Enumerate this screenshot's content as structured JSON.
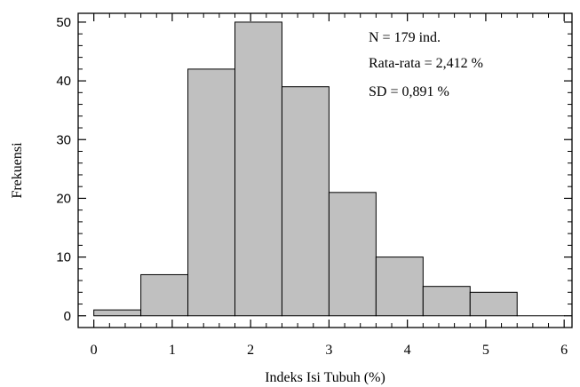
{
  "chart_data": {
    "type": "bar",
    "title": "",
    "xlabel": "Indeks Isi Tubuh (%)",
    "ylabel": "Frekuensi",
    "xlim": [
      -0.2,
      6.1
    ],
    "ylim": [
      -2,
      51.5
    ],
    "x_ticks": [
      "0",
      "1",
      "2",
      "3",
      "4",
      "5",
      "6"
    ],
    "y_ticks": [
      "0",
      "10",
      "20",
      "30",
      "40",
      "50"
    ],
    "bin_width": 0.6,
    "bins": [
      {
        "start": 0.0,
        "end": 0.6,
        "value": 1
      },
      {
        "start": 0.6,
        "end": 1.2,
        "value": 7
      },
      {
        "start": 1.2,
        "end": 1.8,
        "value": 42
      },
      {
        "start": 1.8,
        "end": 2.4,
        "value": 50
      },
      {
        "start": 2.4,
        "end": 3.0,
        "value": 39
      },
      {
        "start": 3.0,
        "end": 3.6,
        "value": 21
      },
      {
        "start": 3.6,
        "end": 4.2,
        "value": 10
      },
      {
        "start": 4.2,
        "end": 4.8,
        "value": 5
      },
      {
        "start": 4.8,
        "end": 5.4,
        "value": 4
      },
      {
        "start": 5.4,
        "end": 6.0,
        "value": 0
      }
    ],
    "annotations": [
      "N = 179 ind.",
      "Rata-rata = 2,412 %",
      "SD = 0,891 %"
    ],
    "bar_color": "#c0c0c0",
    "edge_color": "#000000",
    "grid": false
  }
}
